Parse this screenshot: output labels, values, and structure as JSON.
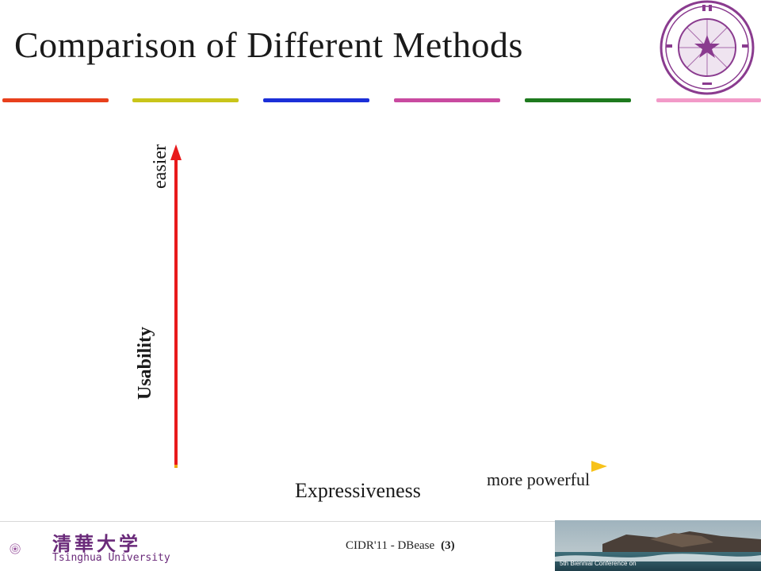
{
  "slide": {
    "title": "Comparison of Different Methods",
    "accent_bars": [
      "#e8401c",
      "#c9c51a",
      "#1b2fd8",
      "#c94aa0",
      "#1e7a1e",
      "#f29ac8"
    ]
  },
  "diagram": {
    "y_axis": {
      "label": "Usability",
      "end_label": "easier",
      "color": "#e8191b"
    },
    "x_axis": {
      "label": "Expressiveness",
      "end_label": "more powerful",
      "color": "#f5b213"
    }
  },
  "footer": {
    "text": "CIDR'11 - DBease",
    "page": "(3)",
    "university_cn": "清華大学",
    "university_en": "Tsinghua University",
    "photo_caption": "5th Biennial Conference on"
  },
  "icons": {
    "seal": "tsinghua-seal-icon",
    "footer_logo": "tsinghua-emblem-icon"
  }
}
